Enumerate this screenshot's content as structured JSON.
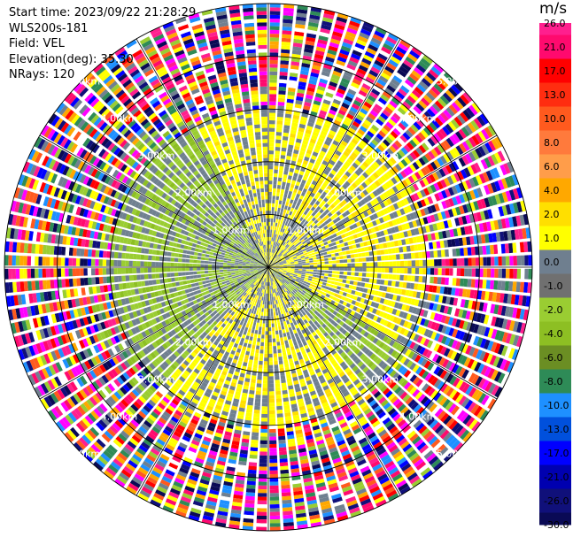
{
  "header": {
    "start_time": "Start time: 2023/09/22 21:28:29",
    "instrument": "WLS200s-181",
    "field": "Field: VEL",
    "elevation": "Elevation(deg): 35.30",
    "nrays": "NRays: 120"
  },
  "colorbar": {
    "unit": "m/s",
    "ticks": [
      "26.0",
      "21.0",
      "17.0",
      "13.0",
      "10.0",
      "8.0",
      "6.0",
      "4.0",
      "2.0",
      "1.0",
      "0.0",
      "-1.0",
      "-2.0",
      "-4.0",
      "-6.0",
      "-8.0",
      "-10.0",
      "-13.0",
      "-17.0",
      "-21.0",
      "-26.0",
      "-30.0"
    ],
    "colors": [
      "#ff1f8e",
      "#ff0a6e",
      "#ff0000",
      "#ff2d10",
      "#ff5a1e",
      "#ff7a3c",
      "#ff9d4a",
      "#ffa800",
      "#ffdf00",
      "#ffff00",
      "#6f7f8f",
      "#707070",
      "#9acd32",
      "#8dbf23",
      "#6b8e23",
      "#2e8b57",
      "#1e90ff",
      "#0050dc",
      "#0000ff",
      "#0000b0",
      "#10107a",
      "#0a0a55"
    ]
  },
  "chart_data": {
    "type": "ppi",
    "field": "VEL",
    "nrays": 120,
    "units": "m/s",
    "range_rings_km": [
      1.0,
      2.0,
      3.0,
      4.0,
      5.0
    ],
    "ring_label": "km",
    "vlim": [
      -30.0,
      30.0
    ],
    "patterns": [
      {
        "region": "north",
        "sign": "positive",
        "value_ms": 2.0
      },
      {
        "region": "east",
        "sign": "positive",
        "value_ms": 2.0
      },
      {
        "region": "south",
        "sign": "positive",
        "value_ms": 2.0
      },
      {
        "region": "west",
        "sign": "negative",
        "value_ms": -2.0
      },
      {
        "region": "beyond 3 km",
        "sign": "noise",
        "value_ms": null
      }
    ]
  }
}
